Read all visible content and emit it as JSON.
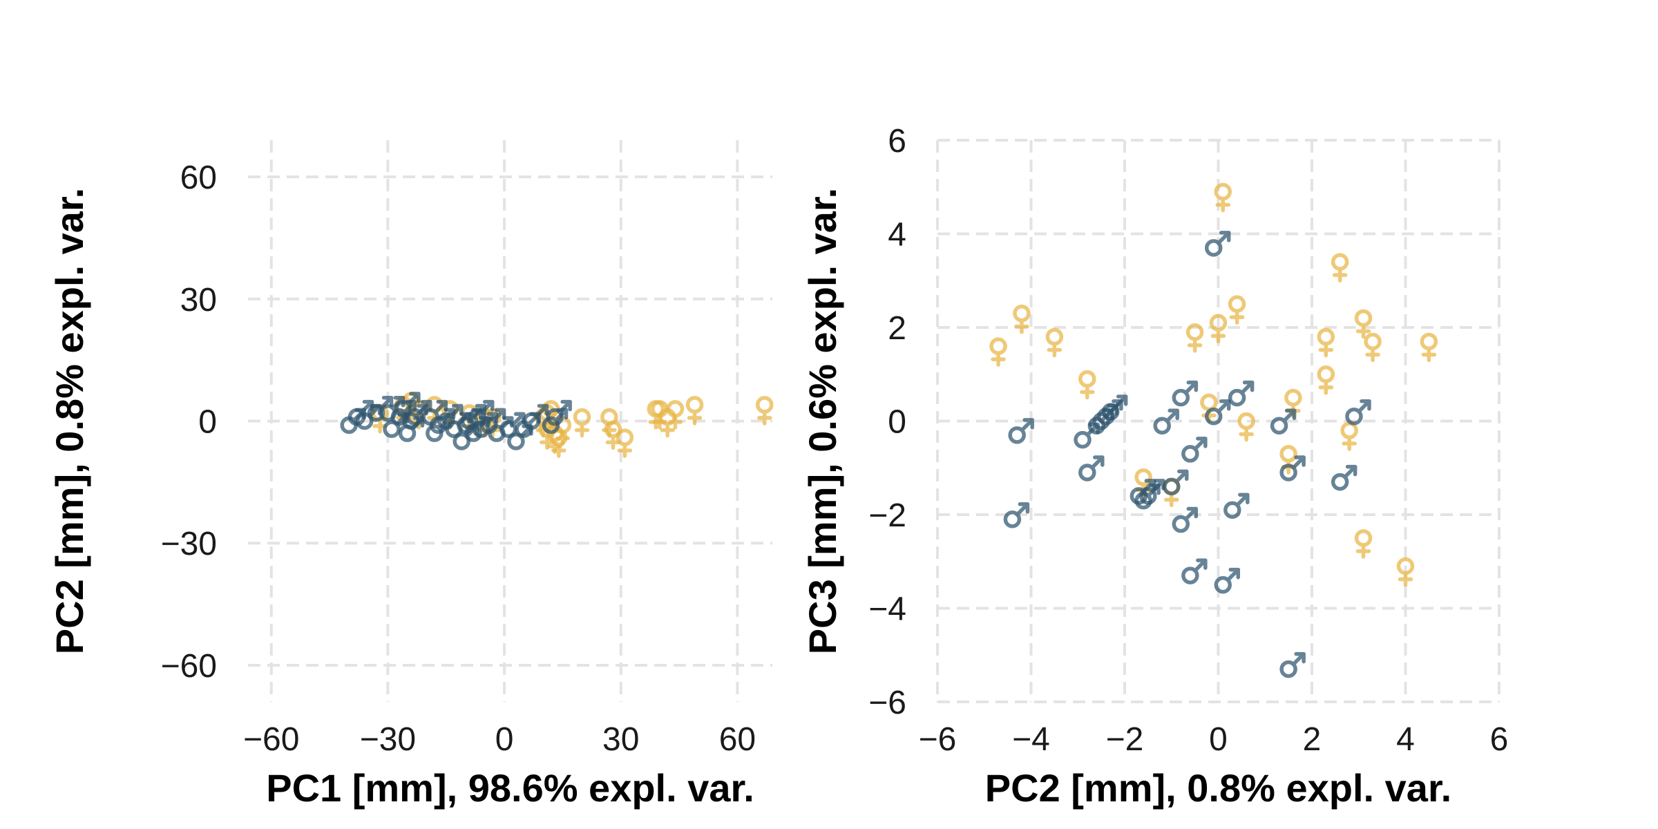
{
  "colors": {
    "male": "#2e546e",
    "female": "#e8b544",
    "grid": "#e3e3e3"
  },
  "marker_icons": {
    "male": "male-symbol-icon",
    "female": "female-symbol-icon"
  },
  "chart_data": [
    {
      "type": "scatter",
      "title": "",
      "xlabel": "PC1 [mm], 98.6% expl. var.",
      "ylabel": "PC2 [mm], 0.8% expl. var.",
      "xlim": [
        -66,
        69
      ],
      "ylim": [
        -69,
        69
      ],
      "xticks": [
        -60,
        -30,
        0,
        30,
        60
      ],
      "yticks": [
        -60,
        -30,
        0,
        30,
        60
      ],
      "xtick_labels": [
        "−60",
        "−30",
        "0",
        "30",
        "60"
      ],
      "ytick_labels": [
        "−60",
        "−30",
        "0",
        "30",
        "60"
      ],
      "grid": true,
      "series": [
        {
          "marker": "female",
          "points": [
            [
              -32,
              2
            ],
            [
              -26,
              4
            ],
            [
              -24,
              5
            ],
            [
              -22,
              3
            ],
            [
              -18,
              4
            ],
            [
              -14,
              3
            ],
            [
              -9,
              2
            ],
            [
              -5,
              1
            ],
            [
              -3,
              1
            ],
            [
              10,
              1
            ],
            [
              11,
              2
            ],
            [
              12,
              3
            ],
            [
              11,
              -2
            ],
            [
              13,
              -3
            ],
            [
              14,
              -4
            ],
            [
              15,
              -1
            ],
            [
              20,
              1
            ],
            [
              27,
              1
            ],
            [
              28,
              -2
            ],
            [
              31,
              -4
            ],
            [
              39,
              3
            ],
            [
              40,
              3
            ],
            [
              42,
              1
            ],
            [
              44,
              3
            ],
            [
              49,
              4
            ],
            [
              67,
              4
            ]
          ]
        },
        {
          "marker": "male",
          "points": [
            [
              -40,
              -1
            ],
            [
              -38,
              1
            ],
            [
              -36,
              0
            ],
            [
              -33,
              2
            ],
            [
              -30,
              2
            ],
            [
              -29,
              -2
            ],
            [
              -27,
              1
            ],
            [
              -26,
              3
            ],
            [
              -25,
              -3
            ],
            [
              -24,
              0
            ],
            [
              -23,
              1
            ],
            [
              -19,
              1
            ],
            [
              -18,
              -3
            ],
            [
              -17,
              -1
            ],
            [
              -15,
              0
            ],
            [
              -13,
              -2
            ],
            [
              -11,
              -5
            ],
            [
              -10,
              -1
            ],
            [
              -9,
              0
            ],
            [
              -8,
              -3
            ],
            [
              -7,
              1
            ],
            [
              -6,
              -2
            ],
            [
              -4,
              -1
            ],
            [
              -2,
              -3
            ],
            [
              1,
              -2
            ],
            [
              3,
              -5
            ],
            [
              5,
              -2
            ],
            [
              7,
              0
            ],
            [
              12,
              -1
            ],
            [
              13,
              1
            ]
          ]
        }
      ]
    },
    {
      "type": "scatter",
      "title": "",
      "xlabel": "PC2 [mm], 0.8% expl. var.",
      "ylabel": "PC3 [mm], 0.6% expl. var.",
      "xlim": [
        -6,
        6
      ],
      "ylim": [
        -6,
        6
      ],
      "xticks": [
        -6,
        -4,
        -2,
        0,
        2,
        4,
        6
      ],
      "yticks": [
        -6,
        -4,
        -2,
        0,
        2,
        4,
        6
      ],
      "xtick_labels": [
        "−6",
        "−4",
        "−2",
        "0",
        "2",
        "4",
        "6"
      ],
      "ytick_labels": [
        "−6",
        "−4",
        "−2",
        "0",
        "2",
        "4",
        "6"
      ],
      "grid": true,
      "series": [
        {
          "marker": "female",
          "points": [
            [
              -4.7,
              1.6
            ],
            [
              -4.2,
              2.3
            ],
            [
              -3.5,
              1.8
            ],
            [
              -2.8,
              0.9
            ],
            [
              -1.6,
              -1.2
            ],
            [
              -1.0,
              -1.4
            ],
            [
              -0.5,
              1.9
            ],
            [
              -0.2,
              0.4
            ],
            [
              0.0,
              2.1
            ],
            [
              0.1,
              4.9
            ],
            [
              0.4,
              2.5
            ],
            [
              0.6,
              0.0
            ],
            [
              1.5,
              -0.7
            ],
            [
              1.6,
              0.5
            ],
            [
              2.3,
              1.8
            ],
            [
              2.3,
              1.0
            ],
            [
              2.6,
              3.4
            ],
            [
              2.8,
              -0.2
            ],
            [
              3.1,
              2.2
            ],
            [
              3.1,
              -2.5
            ],
            [
              3.3,
              1.7
            ],
            [
              4.0,
              -3.1
            ],
            [
              4.5,
              1.7
            ]
          ]
        },
        {
          "marker": "male",
          "points": [
            [
              -4.4,
              -2.1
            ],
            [
              -4.3,
              -0.3
            ],
            [
              -2.9,
              -0.4
            ],
            [
              -2.8,
              -1.1
            ],
            [
              -2.6,
              -0.1
            ],
            [
              -2.5,
              0.0
            ],
            [
              -2.4,
              0.1
            ],
            [
              -2.3,
              0.2
            ],
            [
              -1.7,
              -1.6
            ],
            [
              -1.6,
              -1.7
            ],
            [
              -1.5,
              -1.6
            ],
            [
              -1.2,
              -0.1
            ],
            [
              -1.0,
              -1.4
            ],
            [
              -0.8,
              -2.2
            ],
            [
              -0.8,
              0.5
            ],
            [
              -0.6,
              -0.7
            ],
            [
              -0.6,
              -3.3
            ],
            [
              -0.1,
              3.7
            ],
            [
              -0.1,
              0.1
            ],
            [
              0.1,
              -3.5
            ],
            [
              0.3,
              -1.9
            ],
            [
              0.4,
              0.5
            ],
            [
              1.3,
              -0.1
            ],
            [
              1.5,
              -1.1
            ],
            [
              1.5,
              -5.3
            ],
            [
              2.6,
              -1.3
            ],
            [
              2.9,
              0.1
            ]
          ]
        }
      ]
    }
  ]
}
